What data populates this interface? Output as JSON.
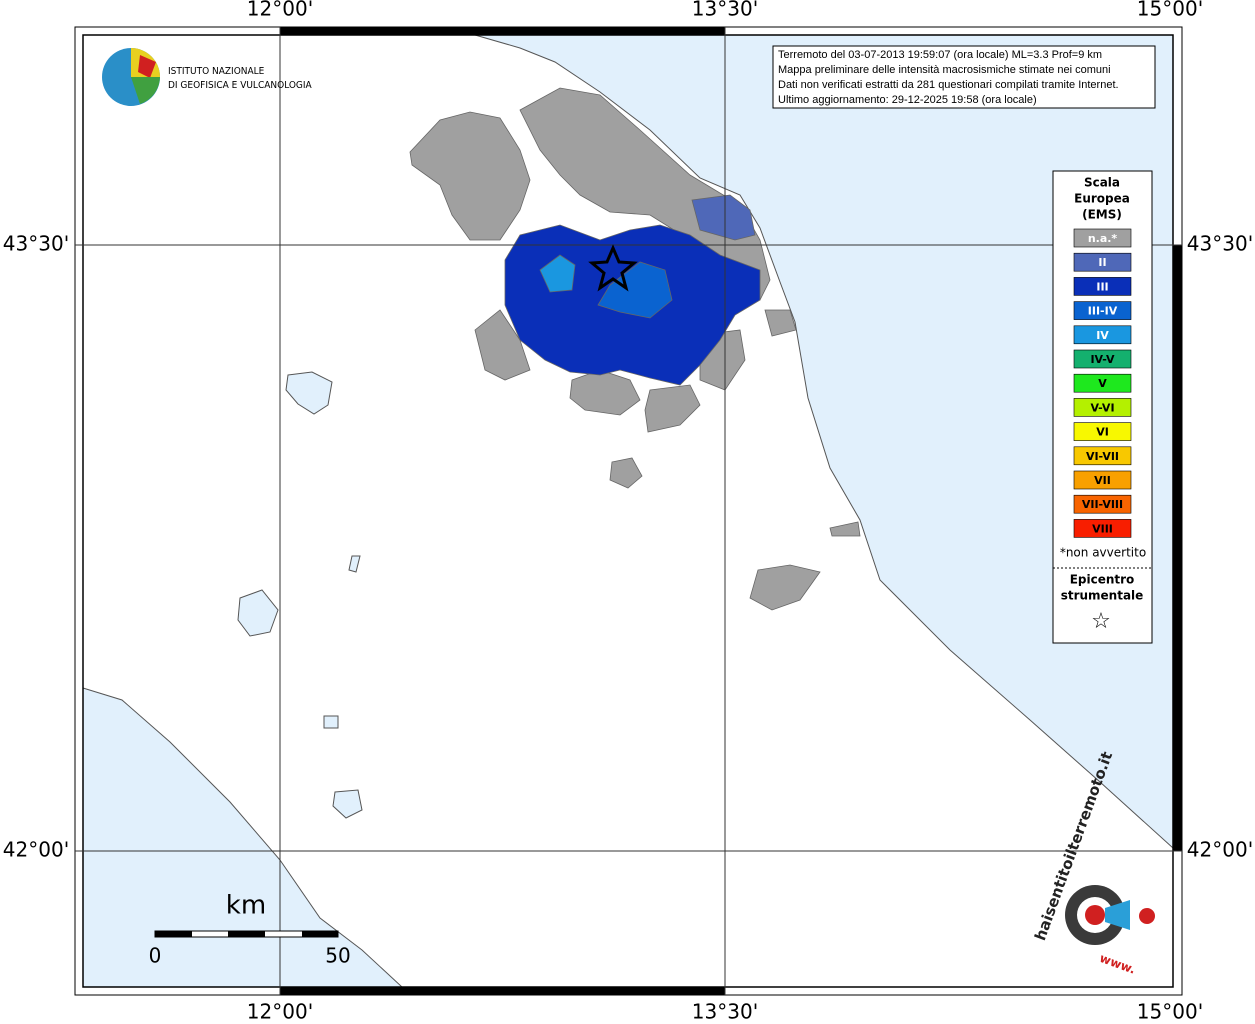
{
  "map": {
    "logo": {
      "line1": "ISTITUTO NAZIONALE",
      "line2": "DI GEOFISICA E VULCANOLOGIA"
    },
    "lon_labels": [
      "12°00'",
      "13°30'",
      "15°00'"
    ],
    "lat_labels": [
      "43°30'",
      "42°00'"
    ],
    "info": [
      "Terremoto del 03-07-2013 19:59:07 (ora locale) ML=3.3 Prof=9 km",
      "Mappa preliminare delle intensità macrosismiche stimate nei comuni",
      "Dati non verificati estratti da 281 questionari compilati tramite Internet.",
      "Ultimo aggiornamento: 29-12-2025 19:58 (ora locale)"
    ],
    "legend": {
      "title": [
        "Scala",
        "Europea",
        "(EMS)"
      ],
      "entries": [
        {
          "label": "n.a.*",
          "color": "#a0a0a0"
        },
        {
          "label": "II",
          "color": "#4f68b8"
        },
        {
          "label": "III",
          "color": "#0a2fb8"
        },
        {
          "label": "III-IV",
          "color": "#0a63d0"
        },
        {
          "label": "IV",
          "color": "#1a97e0"
        },
        {
          "label": "IV-V",
          "color": "#14b06e"
        },
        {
          "label": "V",
          "color": "#1ee81e"
        },
        {
          "label": "V-VI",
          "color": "#b4f000"
        },
        {
          "label": "VI",
          "color": "#f8f800"
        },
        {
          "label": "VI-VII",
          "color": "#f8c800"
        },
        {
          "label": "VII",
          "color": "#f8a000"
        },
        {
          "label": "VII-VIII",
          "color": "#f86400"
        },
        {
          "label": "VIII",
          "color": "#f81e00"
        }
      ],
      "note": "*non avvertito",
      "epicentre": [
        "Epicentro",
        "strumentale"
      ],
      "star": "☆"
    },
    "scale_bar": {
      "unit": "km",
      "start": "0",
      "end": "50"
    },
    "site_logo": {
      "domain": "haisentitoilterremoto.it",
      "prefix": "www."
    }
  }
}
